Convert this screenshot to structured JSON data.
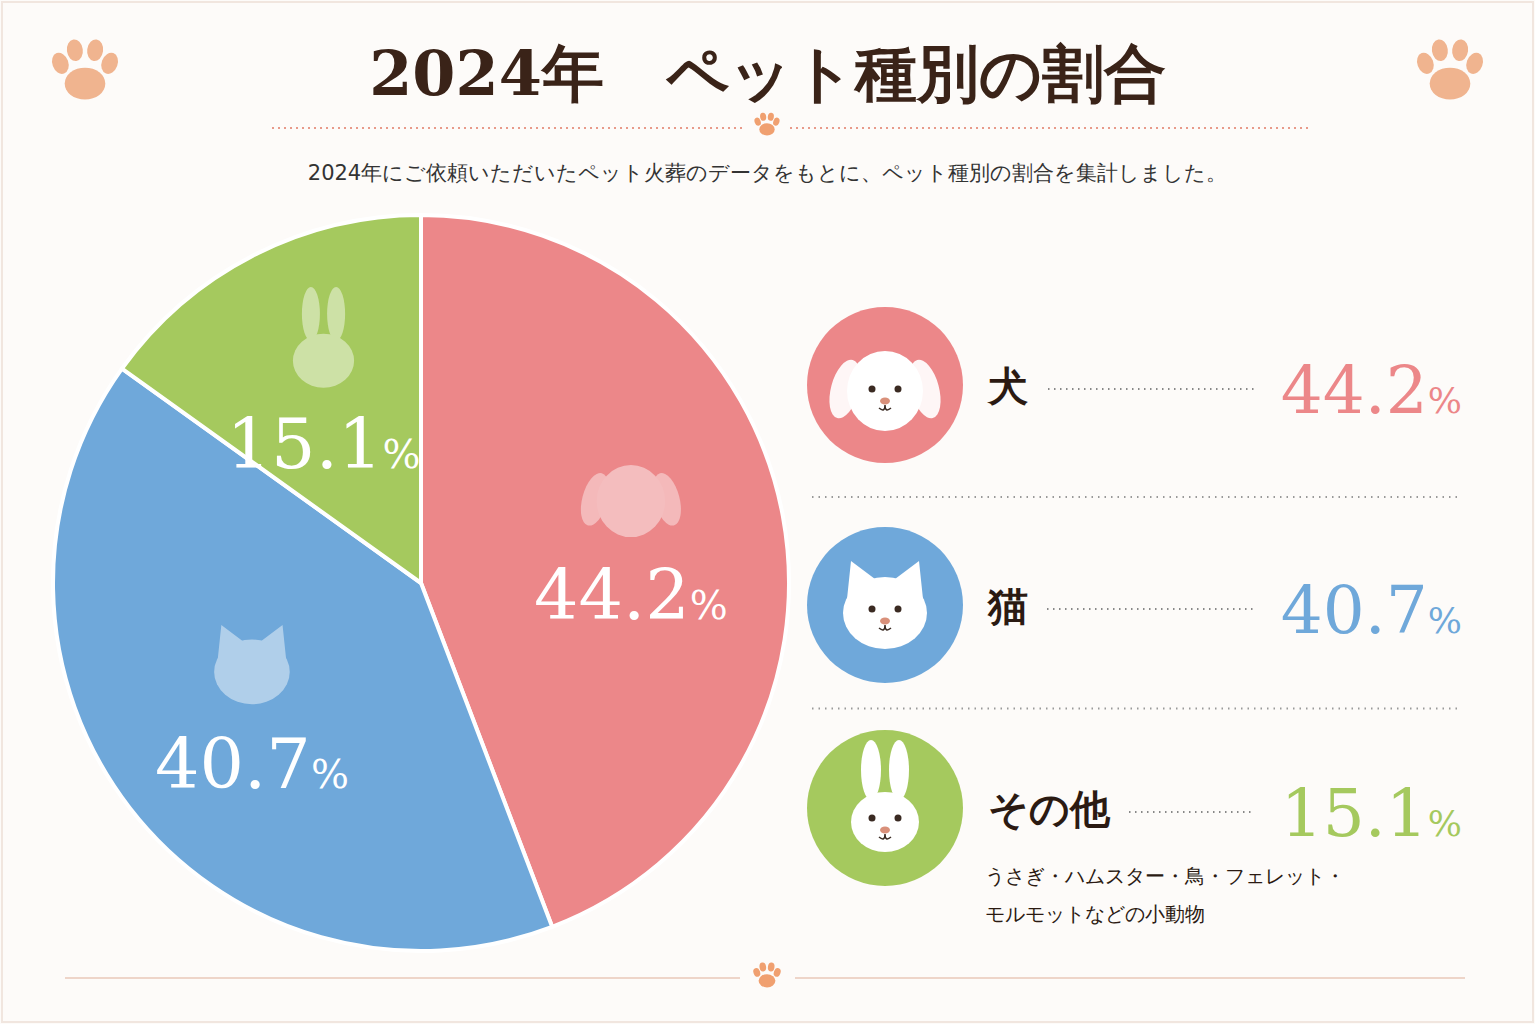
{
  "chart_data": {
    "type": "pie",
    "title": "2024年　ペット種別の割合",
    "subtitle": "2024年にご依頼いただいたペット火葬のデータをもとに、ペット種別の割合を集計しました。",
    "categories": [
      "犬",
      "猫",
      "その他"
    ],
    "values": [
      44.2,
      40.7,
      15.1
    ],
    "value_labels": [
      "44.2%",
      "40.7%",
      "15.1%"
    ],
    "colors": [
      "#ec8789",
      "#6fa8da",
      "#a5c95e"
    ],
    "data_labels": true,
    "legend": "right",
    "annotations": [
      "うさぎ・ハムスター・鳥・フェレット・",
      "モルモットなどの小動物"
    ]
  }
}
